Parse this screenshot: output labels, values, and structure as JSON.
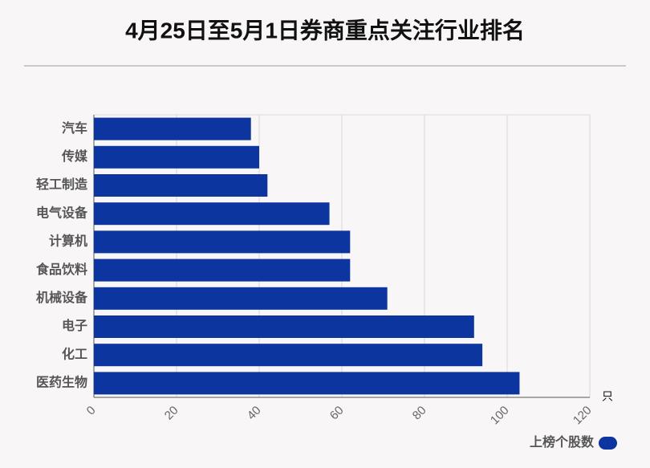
{
  "chart_data": {
    "type": "barh",
    "title": "4月25日至5月1日券商重点关注行业排名",
    "categories": [
      "汽车",
      "传媒",
      "轻工制造",
      "电气设备",
      "计算机",
      "食品饮料",
      "机械设备",
      "电子",
      "化工",
      "医药生物"
    ],
    "series": [
      {
        "name": "上榜个股数",
        "color": "#0c35a0",
        "values": [
          38,
          40,
          42,
          57,
          62,
          62,
          71,
          92,
          94,
          103
        ]
      }
    ],
    "xlabel": "只",
    "xlim": [
      0,
      120
    ],
    "xticks": [
      0,
      20,
      40,
      60,
      80,
      100,
      120
    ],
    "grid": true,
    "legend": "bottom-right"
  }
}
